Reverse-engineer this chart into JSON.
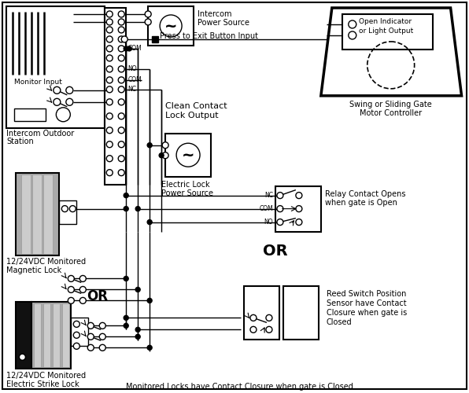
{
  "bg": "#ffffff",
  "figsize": [
    5.96,
    5.0
  ],
  "dpi": 100,
  "texts": {
    "monitor_input": "Monitor Input",
    "intercom_station": [
      "Intercom Outdoor",
      "Station"
    ],
    "intercom_ps": [
      "Intercom",
      "Power Source"
    ],
    "press_exit": "Press to Exit Button Input",
    "clean_contact": [
      "Clean Contact",
      "Lock Output"
    ],
    "electric_lock_ps": [
      "Electric Lock",
      "Power Source"
    ],
    "gate_controller": [
      "Swing or Sliding Gate",
      "Motor Controller"
    ],
    "open_indicator": [
      "Open Indicator",
      "or Light Output"
    ],
    "relay_label": [
      "Relay Contact Opens",
      "when gate is Open"
    ],
    "or_center": "OR",
    "or_left": "OR",
    "reed_switch": [
      "Reed Switch Position",
      "Sensor have Contact",
      "Closure when gate is",
      "Closed"
    ],
    "mag_lock": [
      "12/24VDC Monitored",
      "Magnetic Lock"
    ],
    "strike_lock": [
      "12/24VDC Monitored",
      "Electric Strike Lock"
    ],
    "bottom": "Monitored Locks have Contact Closure when gate is Closed",
    "com": "COM",
    "no": "NO",
    "com2": "COM",
    "nc": "NC",
    "nc_relay": "NC",
    "com_relay": "COM",
    "no_relay": "NO"
  }
}
